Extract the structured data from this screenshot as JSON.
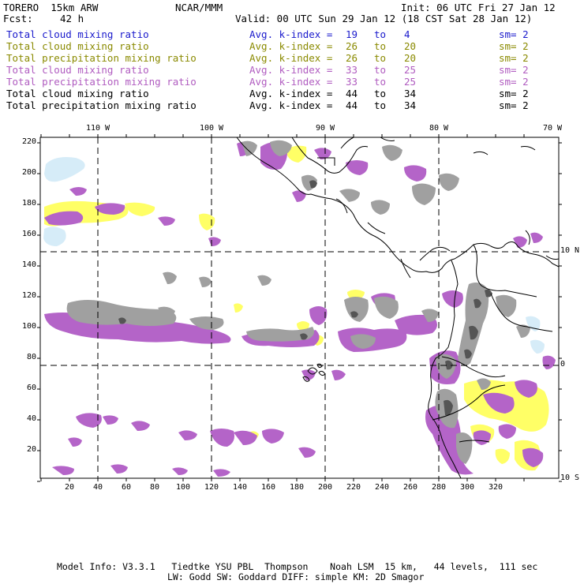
{
  "header": {
    "model_name": "TORERO  15km ARW",
    "institution": "NCAR/MMM",
    "init": "Init: 06 UTC Fri 27 Jan 12",
    "fcst_label": "Fcst:",
    "fcst_value": "42 h",
    "valid": "Valid: 00 UTC Sun 29 Jan 12 (18 CST Sat 28 Jan 12)"
  },
  "fields": [
    {
      "name": "Total cloud mixing ratio",
      "kindex": "Avg. k-index =",
      "from": "19",
      "to_word": "to",
      "to": "4",
      "sm": "sm= 2",
      "color": "#1a1acc"
    },
    {
      "name": "Total cloud mixing ratio",
      "kindex": "Avg. k-index =",
      "from": "26",
      "to_word": "to",
      "to": "20",
      "sm": "sm= 2",
      "color": "#8a8a00"
    },
    {
      "name": "Total precipitation mixing ratio",
      "kindex": "Avg. k-index =",
      "from": "26",
      "to_word": "to",
      "to": "20",
      "sm": "sm= 2",
      "color": "#8a8a00"
    },
    {
      "name": "Total cloud mixing ratio",
      "kindex": "Avg. k-index =",
      "from": "33",
      "to_word": "to",
      "to": "25",
      "sm": "sm= 2",
      "color": "#b05cc0"
    },
    {
      "name": "Total precipitation mixing ratio",
      "kindex": "Avg. k-index =",
      "from": "33",
      "to_word": "to",
      "to": "25",
      "sm": "sm= 2",
      "color": "#b05cc0"
    },
    {
      "name": "Total cloud mixing ratio",
      "kindex": "Avg. k-index =",
      "from": "44",
      "to_word": "to",
      "to": "34",
      "sm": "sm= 2",
      "color": "#000000"
    },
    {
      "name": "Total precipitation mixing ratio",
      "kindex": "Avg. k-index =",
      "from": "44",
      "to_word": "to",
      "to": "34",
      "sm": "sm= 2",
      "color": "#000000"
    }
  ],
  "map": {
    "lon_labels": [
      "110 W",
      "100 W",
      "90 W",
      "80 W",
      "70 W"
    ],
    "lat_labels": [
      "10 N",
      "0",
      "10 S"
    ],
    "x_ticks": [
      "20",
      "40",
      "60",
      "80",
      "100",
      "120",
      "140",
      "160",
      "180",
      "200",
      "220",
      "240",
      "260",
      "280",
      "300",
      "320"
    ],
    "y_ticks": [
      "220",
      "200",
      "180",
      "160",
      "140",
      "120",
      "100",
      "80",
      "60",
      "40",
      "20"
    ],
    "colors": {
      "light_cloud": "#d6ecf8",
      "yellow": "#ffff66",
      "purple": "#b464c8",
      "gray": "#a0a0a0",
      "dark": "#555555"
    }
  },
  "footer": {
    "line1": "Model Info: V3.3.1   Tiedtke YSU PBL  Thompson    Noah LSM  15 km,   44 levels,  111 sec",
    "line2": "LW: Godd SW: Goddard DIFF: simple KM: 2D Smagor"
  }
}
